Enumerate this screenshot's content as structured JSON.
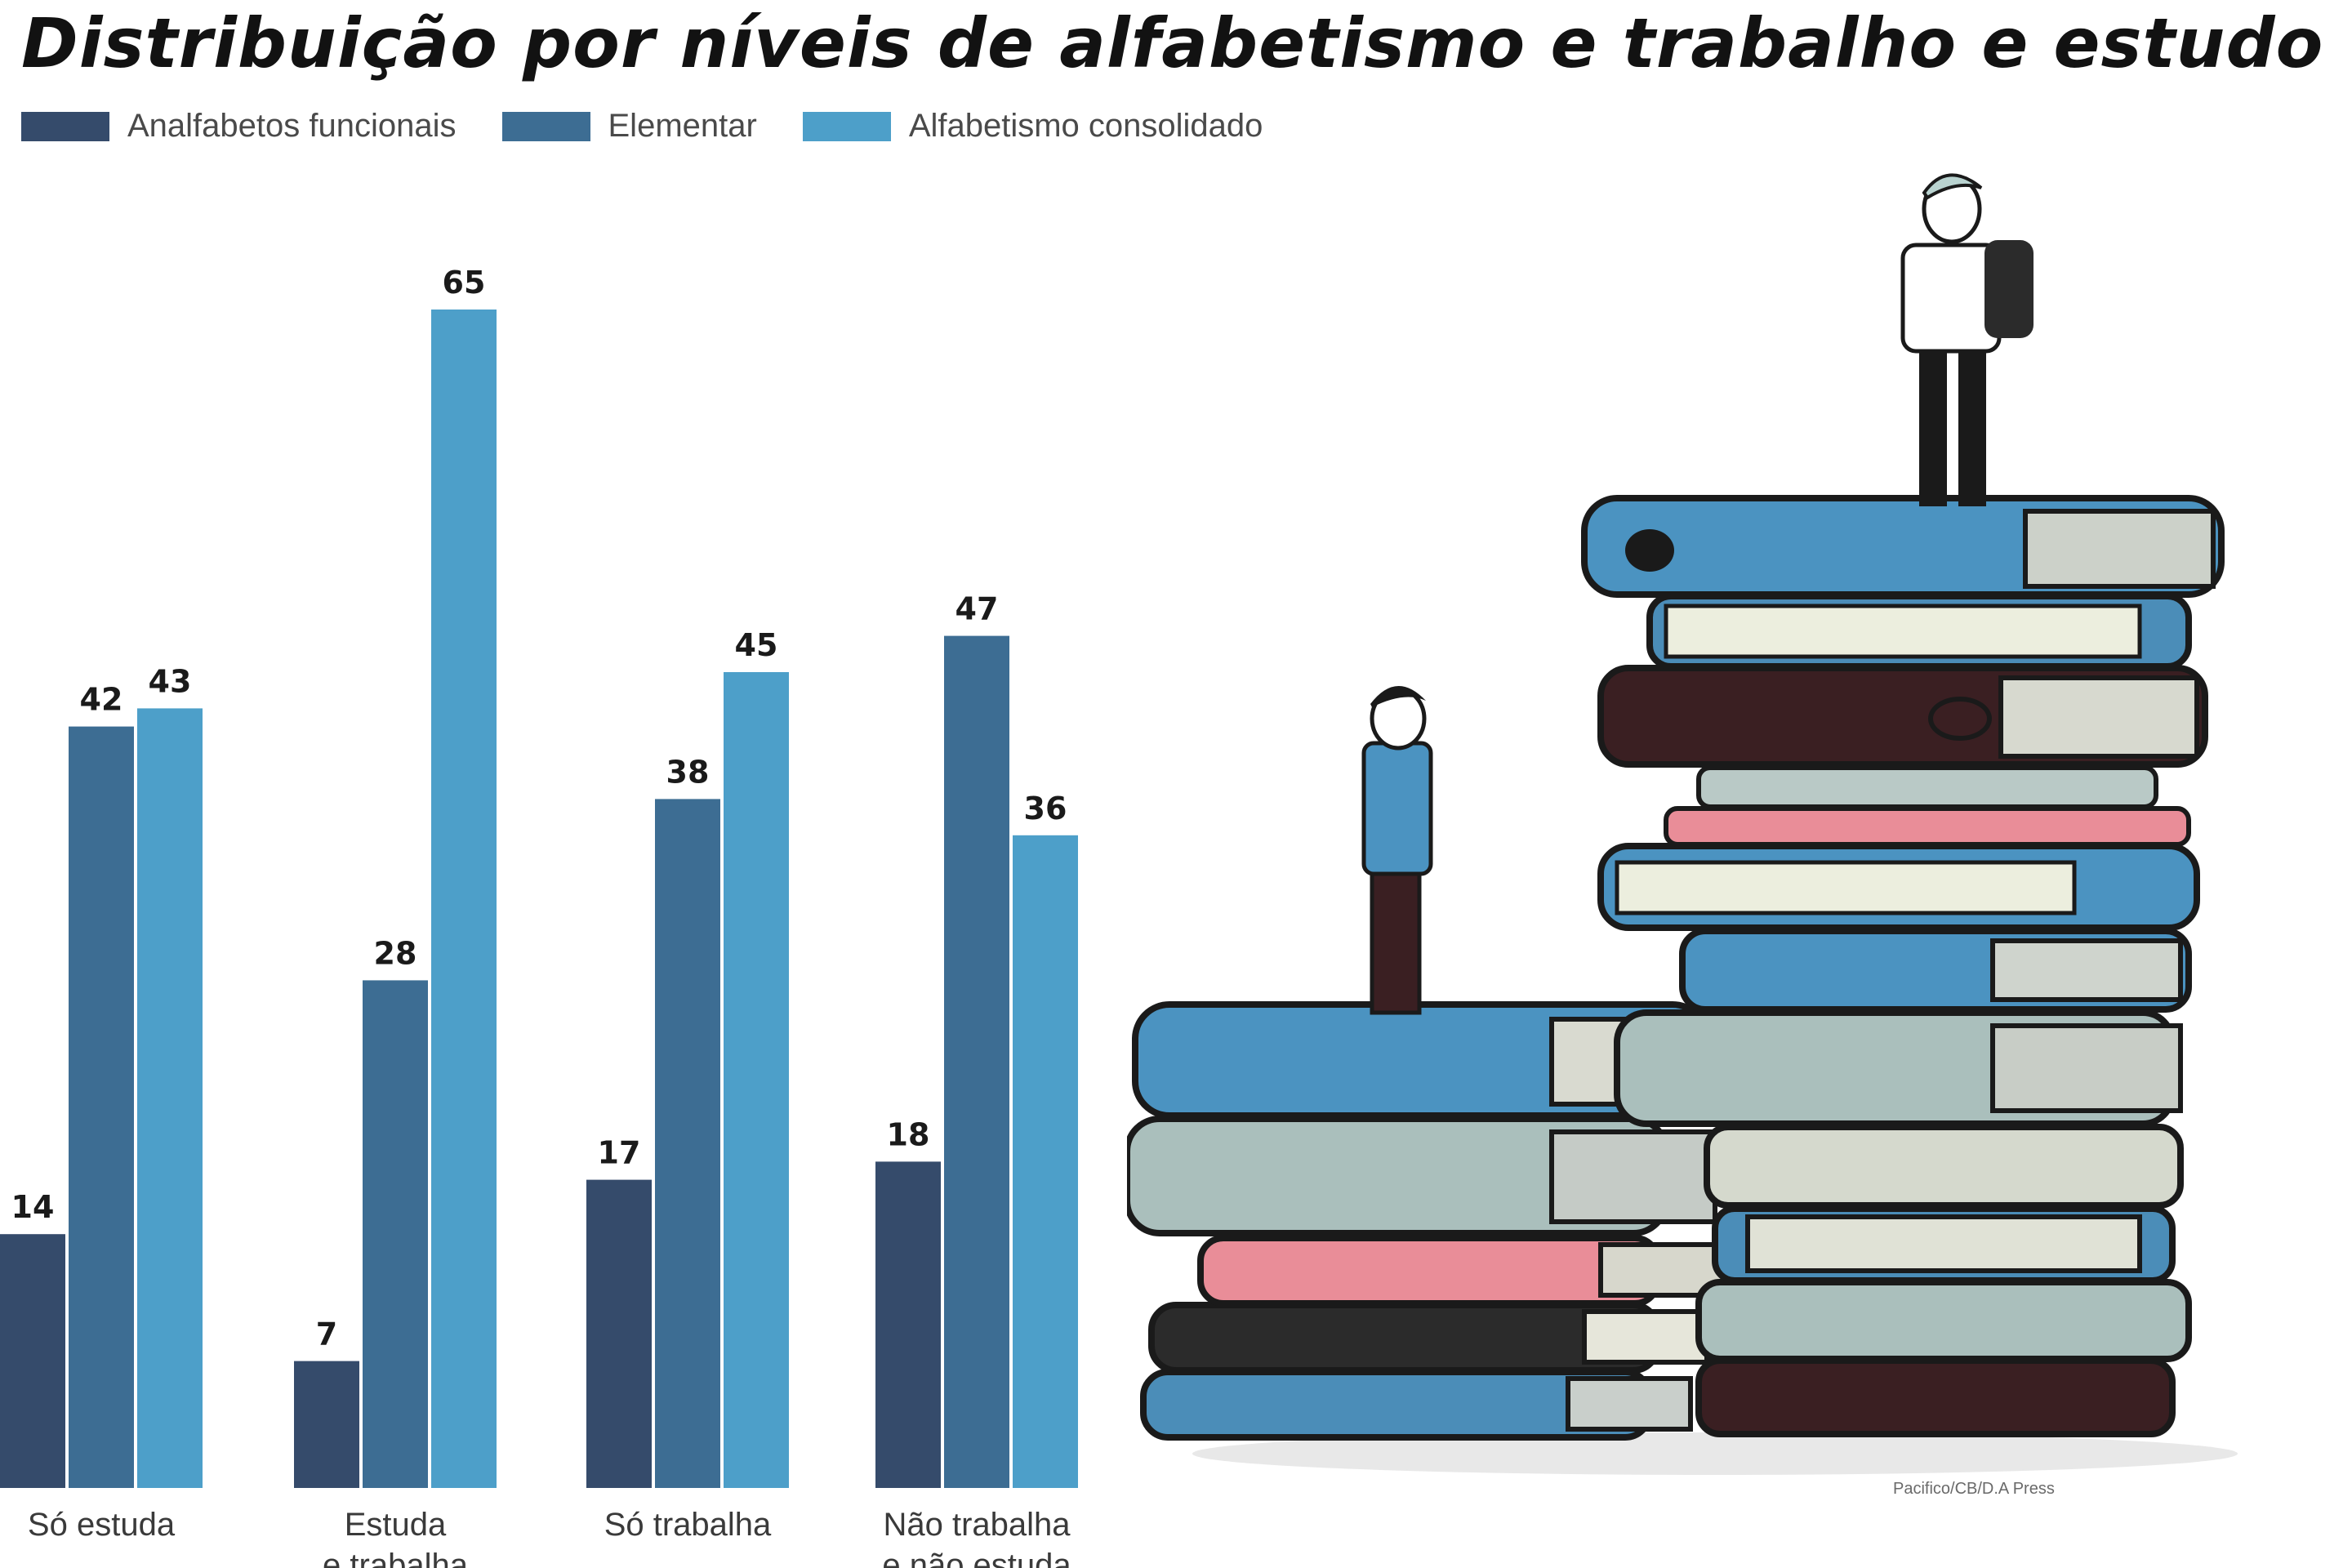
{
  "title": "Distribuição por níveis de alfabetismo e trabalho e estudo",
  "legend": [
    {
      "label": "Analfabetos funcionais",
      "color": "#354b6b"
    },
    {
      "label": "Elementar",
      "color": "#3d6d93"
    },
    {
      "label": "Alfabetismo consolidado",
      "color": "#4d9fc9"
    }
  ],
  "credit": "Pacifico/CB/D.A Press",
  "chart_data": {
    "type": "bar",
    "title": "Distribuição por níveis de alfabetismo e trabalho e estudo",
    "xlabel": "",
    "ylabel": "",
    "ylim": [
      0,
      65
    ],
    "grid": false,
    "legend_position": "top-left",
    "categories": [
      [
        "Só estuda"
      ],
      [
        "Estuda",
        "e trabalha"
      ],
      [
        "Só trabalha"
      ],
      [
        "Não trabalha",
        "e não estuda"
      ]
    ],
    "series": [
      {
        "name": "Analfabetos funcionais",
        "color": "#354b6b",
        "values": [
          14,
          7,
          17,
          18
        ]
      },
      {
        "name": "Elementar",
        "color": "#3d6d93",
        "values": [
          42,
          28,
          38,
          47
        ]
      },
      {
        "name": "Alfabetismo consolidado",
        "color": "#4d9fc9",
        "values": [
          43,
          65,
          45,
          36
        ]
      }
    ]
  }
}
